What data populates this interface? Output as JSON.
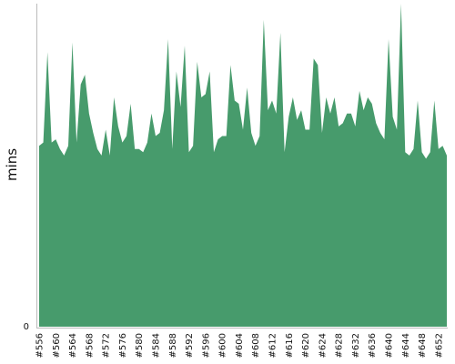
{
  "chart_data": {
    "type": "area",
    "title": "",
    "xlabel": "",
    "ylabel": "mins",
    "color": "#479b6c",
    "ylim": [
      0,
      1
    ],
    "y_tick_labels": [
      "0"
    ],
    "grid": false,
    "legend": "none",
    "x_tick_labels": [
      "#556",
      "#560",
      "#564",
      "#568",
      "#572",
      "#576",
      "#580",
      "#584",
      "#588",
      "#592",
      "#596",
      "#600",
      "#604",
      "#608",
      "#612",
      "#616",
      "#620",
      "#624",
      "#628",
      "#632",
      "#636",
      "#640",
      "#644",
      "#648",
      "#652"
    ],
    "x_tick_start": 556,
    "x_tick_step": 4,
    "x": [
      556,
      557,
      558,
      559,
      560,
      561,
      562,
      563,
      564,
      565,
      566,
      567,
      568,
      569,
      570,
      571,
      572,
      573,
      574,
      575,
      576,
      577,
      578,
      579,
      580,
      581,
      582,
      583,
      584,
      585,
      586,
      587,
      588,
      589,
      590,
      591,
      592,
      593,
      594,
      595,
      596,
      597,
      598,
      599,
      600,
      601,
      602,
      603,
      604,
      605,
      606,
      607,
      608,
      609,
      610,
      611,
      612,
      613,
      614,
      615,
      616,
      617,
      618,
      619,
      620,
      621,
      622,
      623,
      624,
      625,
      626,
      627,
      628,
      629,
      630,
      631,
      632,
      633,
      634,
      635,
      636,
      637,
      638,
      639,
      640,
      641,
      642,
      643,
      644,
      645,
      646,
      647,
      648,
      649,
      650,
      651,
      652,
      653,
      654
    ],
    "values": [
      0.56,
      0.57,
      0.85,
      0.57,
      0.58,
      0.55,
      0.53,
      0.56,
      0.88,
      0.57,
      0.75,
      0.78,
      0.66,
      0.6,
      0.55,
      0.53,
      0.61,
      0.53,
      0.71,
      0.62,
      0.57,
      0.59,
      0.69,
      0.55,
      0.55,
      0.54,
      0.57,
      0.66,
      0.59,
      0.6,
      0.67,
      0.89,
      0.55,
      0.79,
      0.68,
      0.87,
      0.54,
      0.56,
      0.82,
      0.71,
      0.72,
      0.79,
      0.54,
      0.58,
      0.59,
      0.59,
      0.81,
      0.7,
      0.69,
      0.61,
      0.74,
      0.6,
      0.56,
      0.59,
      0.95,
      0.67,
      0.7,
      0.66,
      0.91,
      0.54,
      0.65,
      0.71,
      0.64,
      0.67,
      0.61,
      0.61,
      0.83,
      0.81,
      0.6,
      0.71,
      0.66,
      0.71,
      0.62,
      0.63,
      0.66,
      0.66,
      0.62,
      0.73,
      0.67,
      0.71,
      0.69,
      0.63,
      0.6,
      0.58,
      0.89,
      0.65,
      0.61,
      1.0,
      0.54,
      0.53,
      0.55,
      0.7,
      0.54,
      0.52,
      0.54,
      0.7,
      0.55,
      0.56,
      0.53
    ]
  }
}
